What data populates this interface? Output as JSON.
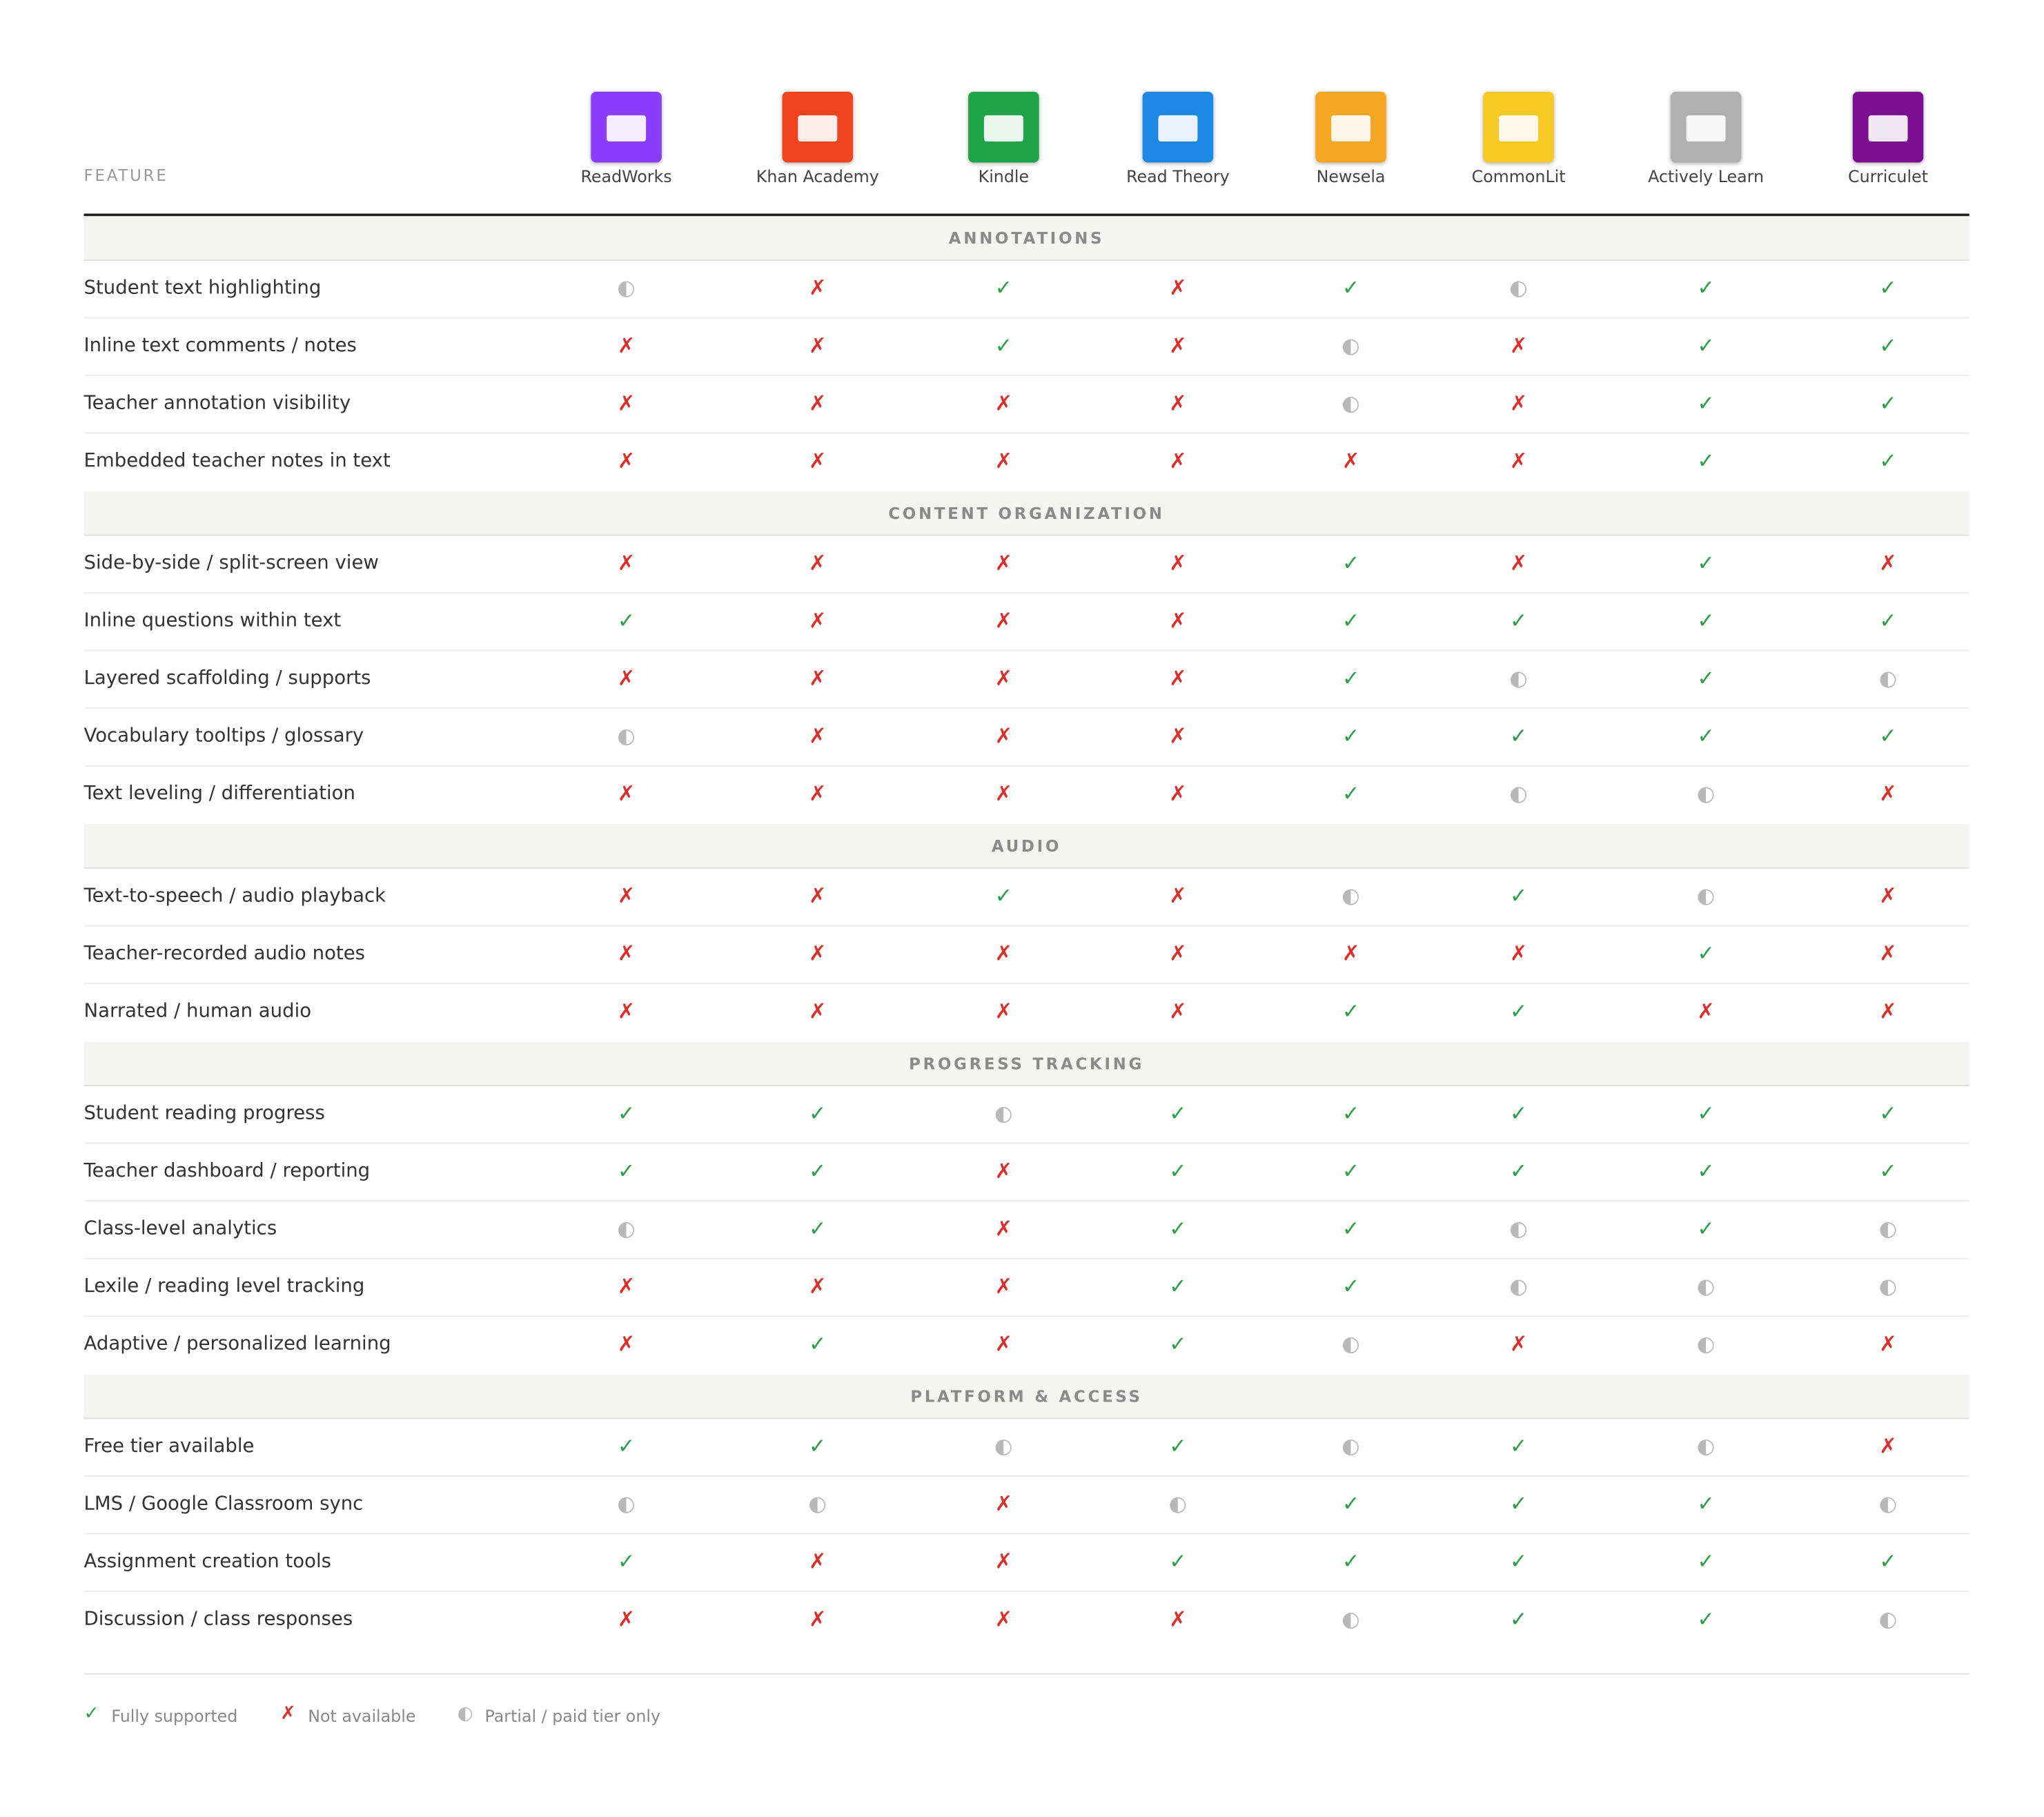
{
  "header": {
    "feature_label": "FEATURE",
    "products": [
      {
        "name": "ReadWorks",
        "color": "#8b3dff"
      },
      {
        "name": "Khan Academy",
        "color": "#f0441f"
      },
      {
        "name": "Kindle",
        "color": "#1fa34a"
      },
      {
        "name": "Read Theory",
        "color": "#1e88e5"
      },
      {
        "name": "Newsela",
        "color": "#f5a623"
      },
      {
        "name": "CommonLit",
        "color": "#f7c925"
      },
      {
        "name": "Actively Learn",
        "color": "#b0b0b0"
      },
      {
        "name": "Curriculet",
        "color": "#7a0f8f"
      }
    ]
  },
  "legend": [
    {
      "symbol": "✓",
      "label": "Fully supported",
      "color": "#2e9e4a"
    },
    {
      "symbol": "✗",
      "label": "Not available",
      "color": "#d9302c"
    },
    {
      "symbol": "◐",
      "label": "Partial / paid tier only",
      "color": "#b8b8b8"
    }
  ],
  "sections": [
    {
      "title": "ANNOTATIONS",
      "rows": [
        {
          "feature": "Student text highlighting",
          "cells": [
            "◐",
            "✗",
            "✓",
            "✗",
            "✓",
            "◐",
            "✓",
            "✓"
          ]
        },
        {
          "feature": "Inline text comments / notes",
          "cells": [
            "✗",
            "✗",
            "✓",
            "✗",
            "◐",
            "✗",
            "✓",
            "✓"
          ]
        },
        {
          "feature": "Teacher annotation visibility",
          "cells": [
            "✗",
            "✗",
            "✗",
            "✗",
            "◐",
            "✗",
            "✓",
            "✓"
          ]
        },
        {
          "feature": "Embedded teacher notes in text",
          "cells": [
            "✗",
            "✗",
            "✗",
            "✗",
            "✗",
            "✗",
            "✓",
            "✓"
          ]
        }
      ]
    },
    {
      "title": "CONTENT ORGANIZATION",
      "rows": [
        {
          "feature": "Side-by-side / split-screen view",
          "cells": [
            "✗",
            "✗",
            "✗",
            "✗",
            "✓",
            "✗",
            "✓",
            "✗"
          ]
        },
        {
          "feature": "Inline questions within text",
          "cells": [
            "✓",
            "✗",
            "✗",
            "✗",
            "✓",
            "✓",
            "✓",
            "✓"
          ]
        },
        {
          "feature": "Layered scaffolding / supports",
          "cells": [
            "✗",
            "✗",
            "✗",
            "✗",
            "✓",
            "◐",
            "✓",
            "◐"
          ]
        },
        {
          "feature": "Vocabulary tooltips / glossary",
          "cells": [
            "◐",
            "✗",
            "✗",
            "✗",
            "✓",
            "✓",
            "✓",
            "✓"
          ]
        },
        {
          "feature": "Text leveling / differentiation",
          "cells": [
            "✗",
            "✗",
            "✗",
            "✗",
            "✓",
            "◐",
            "◐",
            "✗"
          ]
        }
      ]
    },
    {
      "title": "AUDIO",
      "rows": [
        {
          "feature": "Text-to-speech / audio playback",
          "cells": [
            "✗",
            "✗",
            "✓",
            "✗",
            "◐",
            "✓",
            "◐",
            "✗"
          ]
        },
        {
          "feature": "Teacher-recorded audio notes",
          "cells": [
            "✗",
            "✗",
            "✗",
            "✗",
            "✗",
            "✗",
            "✓",
            "✗"
          ]
        },
        {
          "feature": "Narrated / human audio",
          "cells": [
            "✗",
            "✗",
            "✗",
            "✗",
            "✓",
            "✓",
            "✗",
            "✗"
          ]
        }
      ]
    },
    {
      "title": "PROGRESS TRACKING",
      "rows": [
        {
          "feature": "Student reading progress",
          "cells": [
            "✓",
            "✓",
            "◐",
            "✓",
            "✓",
            "✓",
            "✓",
            "✓"
          ]
        },
        {
          "feature": "Teacher dashboard / reporting",
          "cells": [
            "✓",
            "✓",
            "✗",
            "✓",
            "✓",
            "✓",
            "✓",
            "✓"
          ]
        },
        {
          "feature": "Class-level analytics",
          "cells": [
            "◐",
            "✓",
            "✗",
            "✓",
            "✓",
            "◐",
            "✓",
            "◐"
          ]
        },
        {
          "feature": "Lexile / reading level tracking",
          "cells": [
            "✗",
            "✗",
            "✗",
            "✓",
            "✓",
            "◐",
            "◐",
            "◐"
          ]
        },
        {
          "feature": "Adaptive / personalized learning",
          "cells": [
            "✗",
            "✓",
            "✗",
            "✓",
            "◐",
            "✗",
            "◐",
            "✗"
          ]
        }
      ]
    },
    {
      "title": "PLATFORM & ACCESS",
      "rows": [
        {
          "feature": "Free tier available",
          "cells": [
            "✓",
            "✓",
            "◐",
            "✓",
            "◐",
            "✓",
            "◐",
            "✗"
          ]
        },
        {
          "feature": "LMS / Google Classroom sync",
          "cells": [
            "◐",
            "◐",
            "✗",
            "◐",
            "✓",
            "✓",
            "✓",
            "◐"
          ]
        },
        {
          "feature": "Assignment creation tools",
          "cells": [
            "✓",
            "✗",
            "✗",
            "✓",
            "✓",
            "✓",
            "✓",
            "✓"
          ]
        },
        {
          "feature": "Discussion / class responses",
          "cells": [
            "✗",
            "✗",
            "✗",
            "✗",
            "◐",
            "✓",
            "✓",
            "◐"
          ]
        }
      ]
    }
  ]
}
